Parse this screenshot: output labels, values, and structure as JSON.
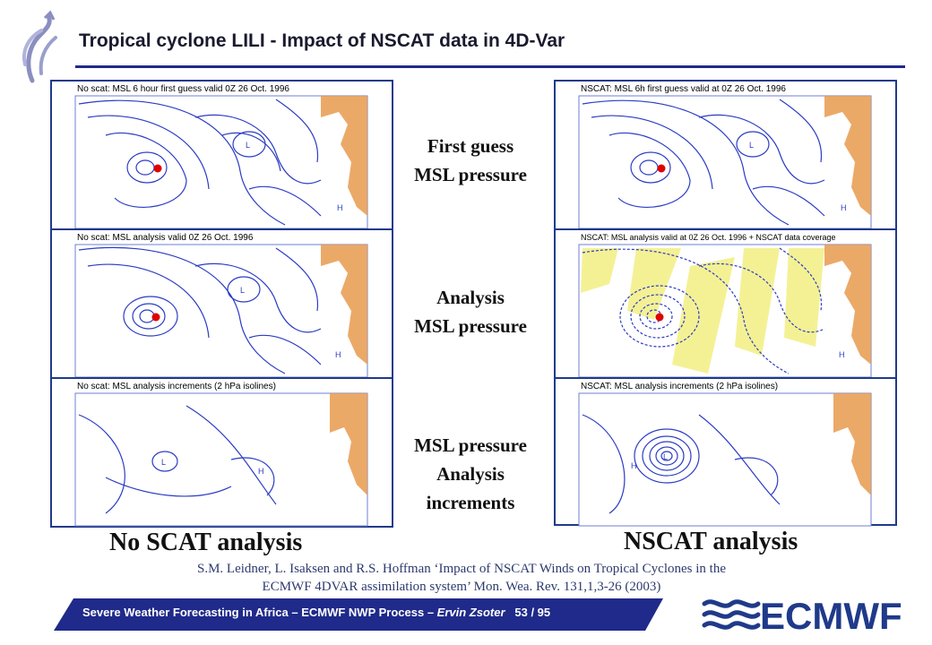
{
  "title": "Tropical cyclone LILI - Impact of NSCAT data in 4D-Var",
  "left_panels": [
    {
      "caption": "No scat: MSL 6 hour first guess valid 0Z 26 Oct. 1996"
    },
    {
      "caption": "No scat: MSL analysis valid 0Z 26 Oct. 1996"
    },
    {
      "caption": "No scat: MSL analysis increments (2 hPa isolines)"
    }
  ],
  "right_panels": [
    {
      "caption": "NSCAT: MSL 6h first guess valid at 0Z 26 Oct. 1996"
    },
    {
      "caption": "NSCAT: MSL analysis valid at 0Z 26 Oct. 1996 + NSCAT data coverage"
    },
    {
      "caption": "NSCAT: MSL analysis increments (2 hPa isolines)"
    }
  ],
  "middle_labels": {
    "first_guess": [
      "First guess",
      "MSL pressure"
    ],
    "analysis": [
      "Analysis",
      "MSL pressure"
    ],
    "increments": [
      "MSL pressure",
      "Analysis",
      "increments"
    ]
  },
  "left_label": "No SCAT analysis",
  "right_label": "NSCAT analysis",
  "reference": [
    "S.M. Leidner, L. Isaksen and R.S. Hoffman ‘Impact of NSCAT Winds on Tropical Cyclones in the",
    "ECMWF 4DVAR assimilation system’  Mon. Wea. Rev. 131,1,3-26 (2003)"
  ],
  "footer": {
    "text": "Severe Weather Forecasting in Africa – ECMWF NWP Process – ",
    "author": "Ervin Zsoter",
    "page": "53 / 95"
  },
  "logo_text": "ECMWF",
  "map_labels": {
    "low": "L",
    "high": "H"
  },
  "colors": {
    "accent": "#1f3a8a",
    "isobar": "#2b3cc4",
    "storm_marker": "#e00000",
    "nscat_swath": "#f3f08a",
    "land": "#e89a4e",
    "footer_band": "#1f2a8a"
  }
}
